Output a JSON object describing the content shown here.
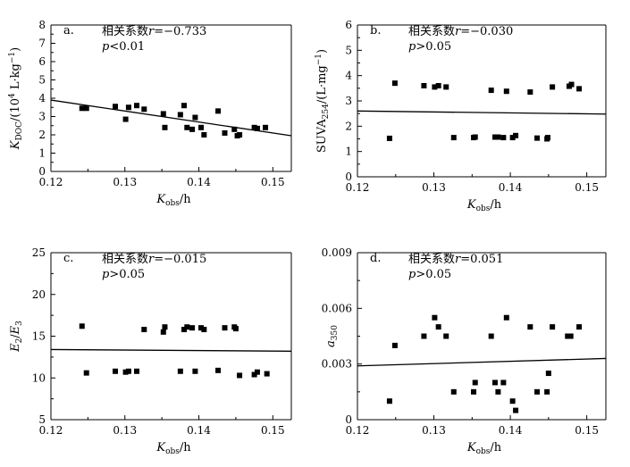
{
  "chart_data": [
    {
      "type": "scatter",
      "panel": "a.",
      "stat_line1": "相关系数r=−0.733",
      "stat_line2": "p<0.01",
      "xlabel": "Kobs/h",
      "ylabel": "KDOC/(10⁴ L·kg⁻¹)",
      "xlim": [
        0.12,
        0.1525
      ],
      "ylim": [
        0,
        8
      ],
      "xticks": [
        "0.12",
        "0.13",
        "0.14",
        "0.15"
      ],
      "yticks": [
        "0",
        "1",
        "2",
        "3",
        "4",
        "5",
        "6",
        "7",
        "8"
      ],
      "regression": {
        "x": [
          0.12,
          0.1525
        ],
        "y": [
          3.9,
          1.95
        ]
      },
      "x": [
        0.1242,
        0.1248,
        0.1287,
        0.1301,
        0.1305,
        0.1316,
        0.1326,
        0.1352,
        0.1354,
        0.1375,
        0.138,
        0.1384,
        0.1391,
        0.1395,
        0.1403,
        0.1407,
        0.1426,
        0.1435,
        0.1448,
        0.1452,
        0.1455,
        0.1475,
        0.1479,
        0.149
      ],
      "y": [
        3.45,
        3.45,
        3.55,
        2.85,
        3.5,
        3.6,
        3.4,
        3.15,
        2.4,
        3.1,
        3.6,
        2.4,
        2.3,
        2.95,
        2.4,
        2.0,
        3.3,
        2.1,
        2.3,
        1.95,
        2.0,
        2.4,
        2.35,
        2.4
      ]
    },
    {
      "type": "scatter",
      "panel": "b.",
      "stat_line1": "相关系数r=−0.030",
      "stat_line2": "p>0.05",
      "xlabel": "Kobs/h",
      "ylabel": "SUVA254/(L·mg⁻¹)",
      "xlim": [
        0.12,
        0.1525
      ],
      "ylim": [
        0,
        6
      ],
      "xticks": [
        "0.12",
        "0.13",
        "0.14",
        "0.15"
      ],
      "yticks": [
        "0",
        "1",
        "2",
        "3",
        "4",
        "5",
        "6"
      ],
      "regression": {
        "x": [
          0.12,
          0.1525
        ],
        "y": [
          2.6,
          2.48
        ]
      },
      "x": [
        0.1242,
        0.1249,
        0.1287,
        0.1301,
        0.1306,
        0.1316,
        0.1326,
        0.1352,
        0.1354,
        0.1375,
        0.138,
        0.1384,
        0.1391,
        0.1395,
        0.1403,
        0.1407,
        0.1426,
        0.1435,
        0.1448,
        0.1449,
        0.1455,
        0.1477,
        0.148,
        0.149
      ],
      "y": [
        1.52,
        3.7,
        3.6,
        3.55,
        3.6,
        3.55,
        1.55,
        1.55,
        1.57,
        3.42,
        1.57,
        1.57,
        1.55,
        3.38,
        1.55,
        1.63,
        3.35,
        1.53,
        1.5,
        1.55,
        3.55,
        3.58,
        3.65,
        3.48
      ]
    },
    {
      "type": "scatter",
      "panel": "c.",
      "stat_line1": "相关系数r=−0.015",
      "stat_line2": "p>0.05",
      "xlabel": "Kobs/h",
      "ylabel": "E2/E3",
      "xlim": [
        0.12,
        0.1525
      ],
      "ylim": [
        5,
        25
      ],
      "xticks": [
        "0.12",
        "0.13",
        "0.14",
        "0.15"
      ],
      "yticks": [
        "5",
        "10",
        "15",
        "20",
        "25"
      ],
      "regression": {
        "x": [
          0.12,
          0.1525
        ],
        "y": [
          13.4,
          13.2
        ]
      },
      "x": [
        0.1242,
        0.1248,
        0.1287,
        0.1301,
        0.1305,
        0.1316,
        0.1326,
        0.1352,
        0.1354,
        0.1375,
        0.138,
        0.1384,
        0.1391,
        0.1395,
        0.1403,
        0.1407,
        0.1426,
        0.1435,
        0.1448,
        0.145,
        0.1455,
        0.1475,
        0.1479,
        0.1492
      ],
      "y": [
        16.2,
        10.6,
        10.8,
        10.7,
        10.8,
        10.8,
        15.8,
        15.5,
        16.1,
        10.8,
        15.8,
        16.1,
        16.0,
        10.8,
        16.0,
        15.8,
        10.9,
        16.0,
        16.1,
        15.9,
        10.3,
        10.4,
        10.7,
        10.5
      ]
    },
    {
      "type": "scatter",
      "panel": "d.",
      "stat_line1": "相关系数r=0.051",
      "stat_line2": "p>0.05",
      "xlabel": "Kobs/h",
      "ylabel": "a350",
      "xlim": [
        0.12,
        0.1525
      ],
      "ylim": [
        0,
        0.009
      ],
      "xticks": [
        "0.12",
        "0.13",
        "0.14",
        "0.15"
      ],
      "yticks": [
        "0",
        "0.003",
        "0.006",
        "0.009"
      ],
      "regression": {
        "x": [
          0.12,
          0.1525
        ],
        "y": [
          0.0029,
          0.0033
        ]
      },
      "x": [
        0.1242,
        0.1249,
        0.1287,
        0.1301,
        0.1306,
        0.1316,
        0.1326,
        0.1352,
        0.1354,
        0.1375,
        0.138,
        0.1384,
        0.1391,
        0.1395,
        0.1403,
        0.1407,
        0.1426,
        0.1435,
        0.1448,
        0.145,
        0.1455,
        0.1475,
        0.1479,
        0.149
      ],
      "y": [
        0.001,
        0.004,
        0.0045,
        0.0055,
        0.005,
        0.0045,
        0.0015,
        0.0015,
        0.002,
        0.0045,
        0.002,
        0.0015,
        0.002,
        0.0055,
        0.001,
        0.0005,
        0.005,
        0.0015,
        0.0015,
        0.0025,
        0.005,
        0.0045,
        0.0045,
        0.005
      ]
    }
  ]
}
